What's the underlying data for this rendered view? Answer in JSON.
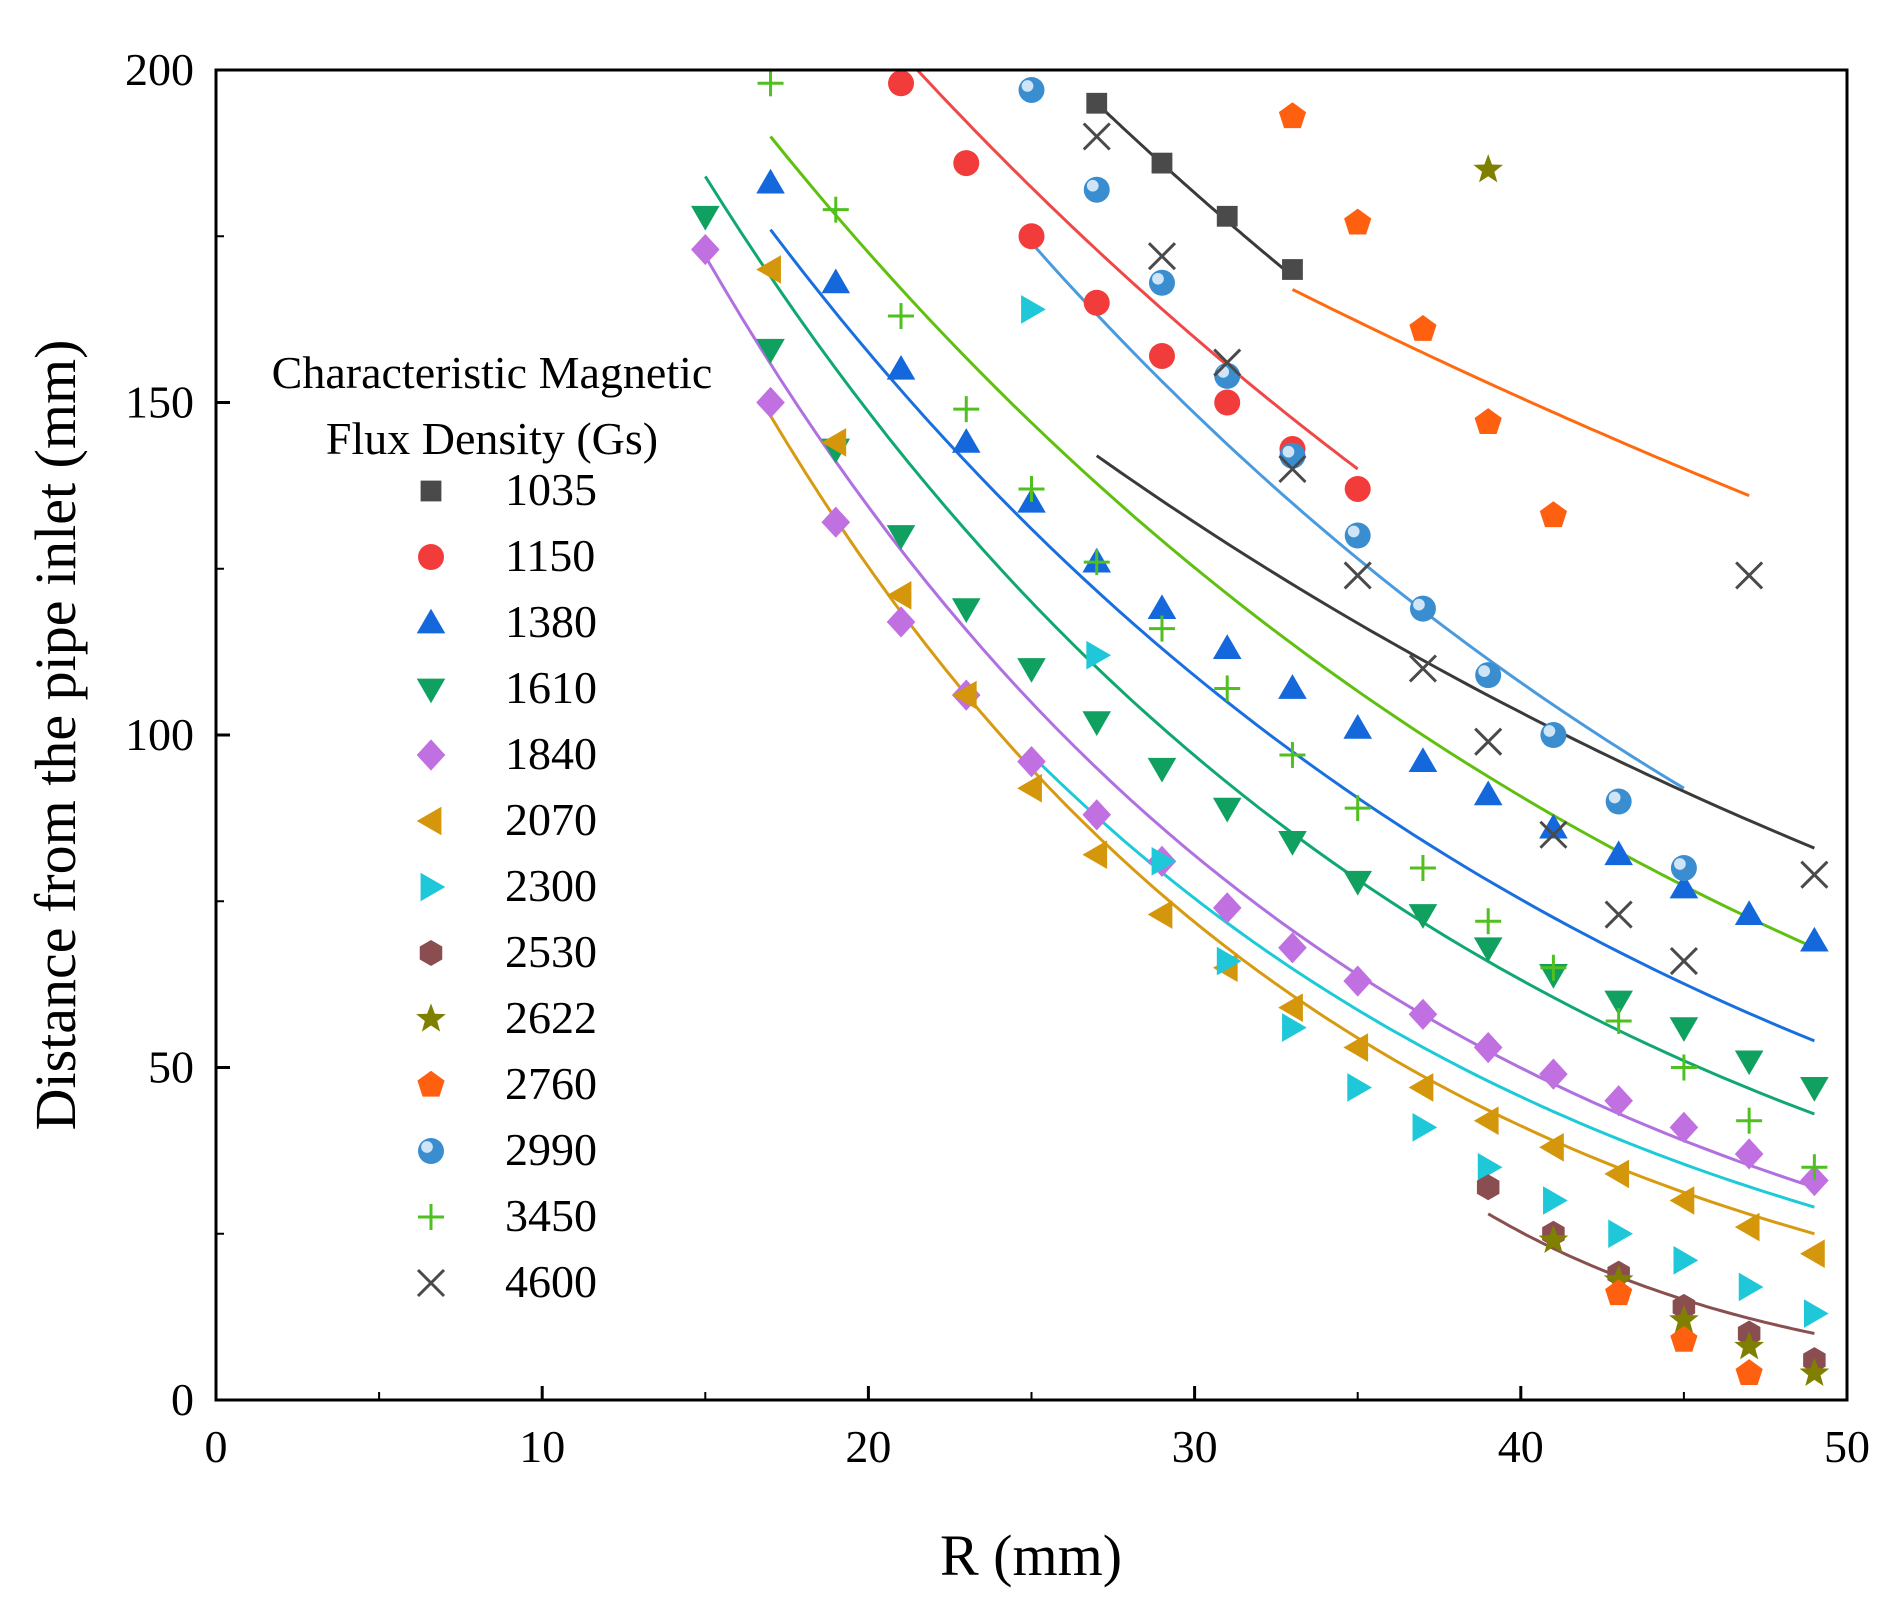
{
  "chart_data": {
    "type": "scatter",
    "xlabel": "R (mm)",
    "ylabel": "Distance from the pipe inlet (mm)",
    "xlim": [
      0,
      50
    ],
    "ylim": [
      0,
      200
    ],
    "xticks": [
      "0",
      "10",
      "20",
      "30",
      "40",
      "50"
    ],
    "yticks": [
      "0",
      "50",
      "100",
      "150",
      "200"
    ],
    "grid": false,
    "legend": {
      "title_line1": "Characteristic Magnetic",
      "title_line2": "Flux Density (Gs)",
      "placement": "center-left"
    },
    "series": [
      {
        "name": "1035",
        "marker": "square",
        "color": "#4a4a4a",
        "fitColor": "#3a3a3a",
        "x": [
          27,
          29,
          31,
          33
        ],
        "y": [
          195,
          186,
          178,
          170
        ],
        "fit": {
          "x": [
            27,
            33
          ],
          "y": [
            195,
            169
          ]
        }
      },
      {
        "name": "1150",
        "marker": "circle",
        "color": "#f23c3c",
        "fitColor": "#f04848",
        "x": [
          21,
          23,
          25,
          27,
          29,
          31,
          33,
          35
        ],
        "y": [
          198,
          186,
          175,
          165,
          157,
          150,
          143,
          137
        ],
        "fit": {
          "x": [
            21.5,
            35
          ],
          "y": [
            200,
            140
          ]
        }
      },
      {
        "name": "1380",
        "marker": "triangle-up",
        "color": "#1468dc",
        "fitColor": "#1a6fe0",
        "x": [
          17,
          19,
          21,
          23,
          25,
          27,
          29,
          31,
          33,
          35,
          37,
          39,
          41,
          43,
          45,
          47,
          49
        ],
        "y": [
          183,
          168,
          155,
          144,
          135,
          126,
          119,
          113,
          107,
          101,
          96,
          91,
          86,
          82,
          77,
          73,
          69
        ],
        "fit": {
          "x": [
            17,
            49
          ],
          "y": [
            176,
            54
          ]
        }
      },
      {
        "name": "1610",
        "marker": "triangle-down",
        "color": "#10a060",
        "fitColor": "#10a870",
        "x": [
          15,
          17,
          19,
          21,
          23,
          25,
          27,
          29,
          31,
          33,
          35,
          37,
          39,
          41,
          43,
          45,
          47,
          49
        ],
        "y": [
          178,
          158,
          143,
          130,
          119,
          110,
          102,
          95,
          89,
          84,
          78,
          73,
          68,
          64,
          60,
          56,
          51,
          47
        ],
        "fit": {
          "x": [
            15,
            49
          ],
          "y": [
            184,
            43
          ]
        }
      },
      {
        "name": "1840",
        "marker": "diamond",
        "color": "#c070e0",
        "fitColor": "#b070e0",
        "x": [
          15,
          17,
          19,
          21,
          23,
          25,
          27,
          29,
          31,
          33,
          35,
          37,
          39,
          41,
          43,
          45,
          47,
          49
        ],
        "y": [
          173,
          150,
          132,
          117,
          106,
          96,
          88,
          81,
          74,
          68,
          63,
          58,
          53,
          49,
          45,
          41,
          37,
          33
        ],
        "fit": {
          "x": [
            15,
            49
          ],
          "y": [
            172,
            32
          ]
        }
      },
      {
        "name": "2070",
        "marker": "triangle-left",
        "color": "#d4960a",
        "fitColor": "#d89a10",
        "x": [
          17,
          19,
          21,
          23,
          25,
          27,
          29,
          31,
          33,
          35,
          37,
          39,
          41,
          43,
          45,
          47,
          49
        ],
        "y": [
          170,
          144,
          121,
          106,
          92,
          82,
          73,
          65,
          59,
          53,
          47,
          42,
          38,
          34,
          30,
          26,
          22
        ],
        "fit": {
          "x": [
            17,
            49
          ],
          "y": [
            148,
            25
          ]
        }
      },
      {
        "name": "2300",
        "marker": "triangle-right",
        "color": "#1ec8d8",
        "fitColor": "#1ccad8",
        "x": [
          25,
          27,
          29,
          31,
          33,
          35,
          37,
          39,
          41,
          43,
          45,
          47,
          49
        ],
        "y": [
          164,
          112,
          81,
          66,
          56,
          47,
          41,
          35,
          30,
          25,
          21,
          17,
          13
        ],
        "fit": {
          "x": [
            25,
            49
          ],
          "y": [
            97,
            29
          ]
        }
      },
      {
        "name": "2530",
        "marker": "hexagon",
        "color": "#8a4e50",
        "fitColor": "#8a5050",
        "x": [
          39,
          41,
          43,
          45,
          47,
          49
        ],
        "y": [
          32,
          25,
          19,
          14,
          10,
          6
        ],
        "fit": {
          "x": [
            39,
            49
          ],
          "y": [
            28,
            10
          ]
        }
      },
      {
        "name": "2622",
        "marker": "star",
        "color": "#808000",
        "x": [
          39,
          41,
          43,
          45,
          47,
          49
        ],
        "y": [
          185,
          24,
          18,
          12,
          8,
          4
        ]
      },
      {
        "name": "2760",
        "marker": "pentagon",
        "color": "#ff6010",
        "fitColor": "#ff6a10",
        "x": [
          33,
          35,
          37,
          39,
          41,
          43,
          45,
          47
        ],
        "y": [
          193,
          177,
          161,
          147,
          133,
          16,
          9,
          4
        ],
        "fit": {
          "x": [
            33,
            47
          ],
          "y": [
            167,
            136
          ]
        }
      },
      {
        "name": "2990",
        "marker": "sphere",
        "color": "#3a8ed0",
        "fitColor": "#4a9ade",
        "x": [
          25,
          27,
          29,
          31,
          33,
          35,
          37,
          39,
          41,
          43,
          45
        ],
        "y": [
          197,
          182,
          168,
          154,
          142,
          130,
          119,
          109,
          100,
          90,
          80
        ],
        "fit": {
          "x": [
            25,
            45
          ],
          "y": [
            174,
            92
          ]
        }
      },
      {
        "name": "3450",
        "marker": "plus",
        "color": "#50c020",
        "fitColor": "#60c010",
        "x": [
          17,
          19,
          21,
          23,
          25,
          27,
          29,
          31,
          33,
          35,
          37,
          39,
          41,
          43,
          45,
          47,
          49
        ],
        "y": [
          198,
          179,
          163,
          149,
          137,
          126,
          116,
          107,
          97,
          89,
          80,
          72,
          65,
          57,
          50,
          42,
          35
        ],
        "fit": {
          "x": [
            17,
            49
          ],
          "y": [
            190,
            68
          ]
        }
      },
      {
        "name": "4600",
        "marker": "cross",
        "color": "#4a4a4a",
        "fitColor": "#3a3a3a",
        "x": [
          27,
          29,
          31,
          33,
          35,
          37,
          39,
          41,
          43,
          45,
          47,
          49
        ],
        "y": [
          190,
          172,
          156,
          140,
          124,
          110,
          99,
          85,
          73,
          66,
          124,
          79
        ],
        "fit": {
          "x": [
            27,
            49
          ],
          "y": [
            142,
            83
          ]
        }
      }
    ]
  }
}
